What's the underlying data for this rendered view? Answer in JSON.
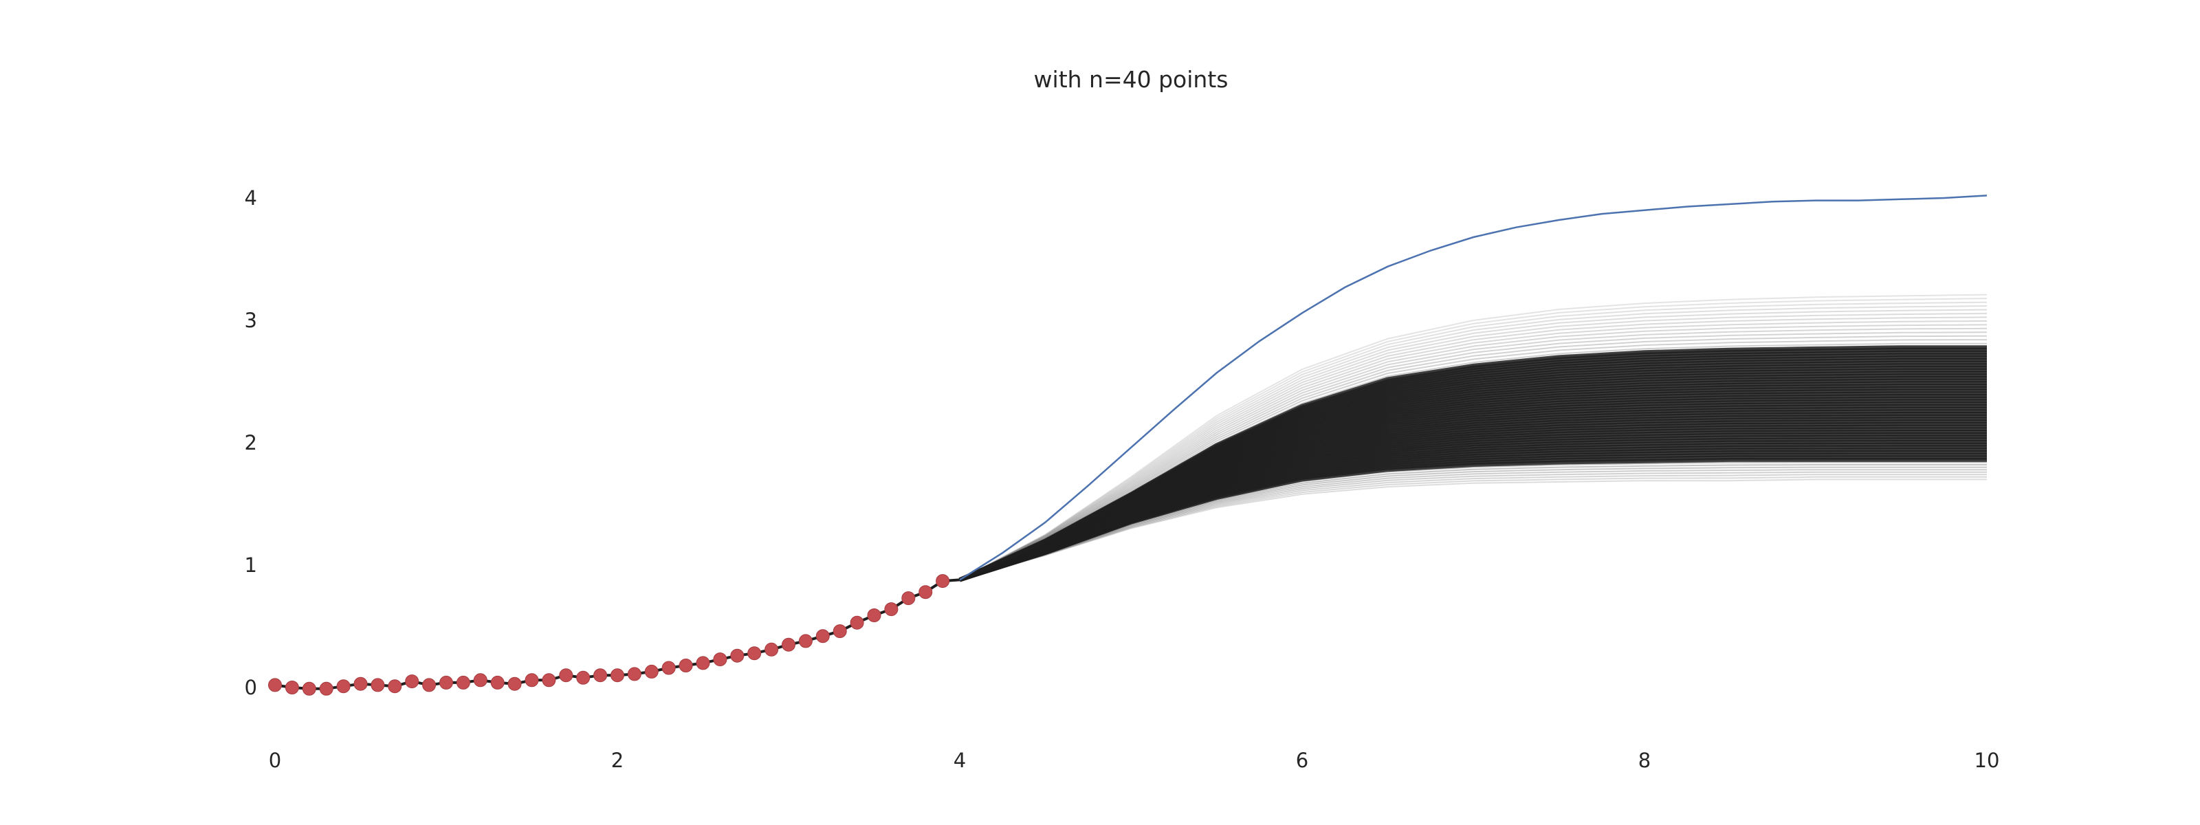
{
  "chart_data": {
    "type": "line",
    "title": "with n=40 points",
    "xlabel": "",
    "ylabel": "",
    "xlim": [
      0,
      10
    ],
    "ylim": [
      -0.5,
      4.6
    ],
    "grid": false,
    "legend": "none",
    "x_ticks": [
      0,
      2,
      4,
      6,
      8,
      10
    ],
    "y_ticks": [
      0,
      1,
      2,
      3,
      4
    ],
    "x_tick_labels": [
      "0",
      "2",
      "4",
      "6",
      "8",
      "10"
    ],
    "y_tick_labels": [
      "0",
      "1",
      "2",
      "3",
      "4"
    ],
    "colors": {
      "true_curve": "#4c72b0",
      "samples": "#1e1e1e",
      "points": "#c44e52",
      "text": "#262626"
    },
    "series": [
      {
        "role": "true_curve",
        "x": [
          4.0,
          4.25,
          4.5,
          4.75,
          5.0,
          5.25,
          5.5,
          5.75,
          6.0,
          6.25,
          6.5,
          6.75,
          7.0,
          7.25,
          7.5,
          7.75,
          8.0,
          8.25,
          8.5,
          8.75,
          9.0,
          9.25,
          9.5,
          9.75,
          10.0
        ],
        "y": [
          0.88,
          1.1,
          1.35,
          1.65,
          1.96,
          2.27,
          2.57,
          2.83,
          3.06,
          3.27,
          3.44,
          3.57,
          3.68,
          3.76,
          3.82,
          3.87,
          3.9,
          3.93,
          3.95,
          3.97,
          3.98,
          3.98,
          3.99,
          4.0,
          4.02
        ]
      },
      {
        "role": "samples_band_upper",
        "x": [
          4.0,
          4.5,
          5.0,
          5.5,
          6.0,
          6.5,
          7.0,
          7.5,
          8.0,
          8.5,
          9.0,
          9.5,
          10.0
        ],
        "y": [
          0.88,
          1.25,
          1.72,
          2.22,
          2.6,
          2.85,
          3.0,
          3.09,
          3.14,
          3.17,
          3.19,
          3.2,
          3.21
        ]
      },
      {
        "role": "samples_dense_upper",
        "x": [
          4.0,
          4.5,
          5.0,
          5.5,
          6.0,
          6.5,
          7.0,
          7.5,
          8.0,
          8.5,
          9.0,
          9.5,
          10.0
        ],
        "y": [
          0.88,
          1.2,
          1.58,
          1.98,
          2.3,
          2.52,
          2.63,
          2.7,
          2.74,
          2.76,
          2.77,
          2.78,
          2.78
        ]
      },
      {
        "role": "samples_dense_lower",
        "x": [
          4.0,
          4.5,
          5.0,
          5.5,
          6.0,
          6.5,
          7.0,
          7.5,
          8.0,
          8.5,
          9.0,
          9.5,
          10.0
        ],
        "y": [
          0.88,
          1.1,
          1.35,
          1.55,
          1.7,
          1.78,
          1.82,
          1.84,
          1.85,
          1.86,
          1.86,
          1.86,
          1.86
        ]
      },
      {
        "role": "samples_band_lower",
        "x": [
          4.0,
          4.5,
          5.0,
          5.5,
          6.0,
          6.5,
          7.0,
          7.5,
          8.0,
          8.5,
          9.0,
          9.5,
          10.0
        ],
        "y": [
          0.88,
          1.08,
          1.3,
          1.47,
          1.58,
          1.64,
          1.67,
          1.68,
          1.69,
          1.69,
          1.7,
          1.7,
          1.7
        ]
      },
      {
        "role": "observed_points",
        "x": [
          0.0,
          0.1,
          0.2,
          0.3,
          0.4,
          0.5,
          0.6,
          0.7,
          0.8,
          0.9,
          1.0,
          1.1,
          1.2,
          1.3,
          1.4,
          1.5,
          1.6,
          1.7,
          1.8,
          1.9,
          2.0,
          2.1,
          2.2,
          2.3,
          2.4,
          2.5,
          2.6,
          2.7,
          2.8,
          2.9,
          3.0,
          3.1,
          3.2,
          3.3,
          3.4,
          3.5,
          3.6,
          3.7,
          3.8,
          3.9
        ],
        "y": [
          0.02,
          0.0,
          -0.01,
          -0.01,
          0.01,
          0.03,
          0.02,
          0.01,
          0.05,
          0.02,
          0.04,
          0.04,
          0.06,
          0.04,
          0.03,
          0.06,
          0.06,
          0.1,
          0.08,
          0.1,
          0.1,
          0.11,
          0.13,
          0.16,
          0.18,
          0.2,
          0.23,
          0.26,
          0.28,
          0.31,
          0.35,
          0.38,
          0.42,
          0.46,
          0.53,
          0.59,
          0.64,
          0.73,
          0.78,
          0.87
        ]
      }
    ]
  }
}
